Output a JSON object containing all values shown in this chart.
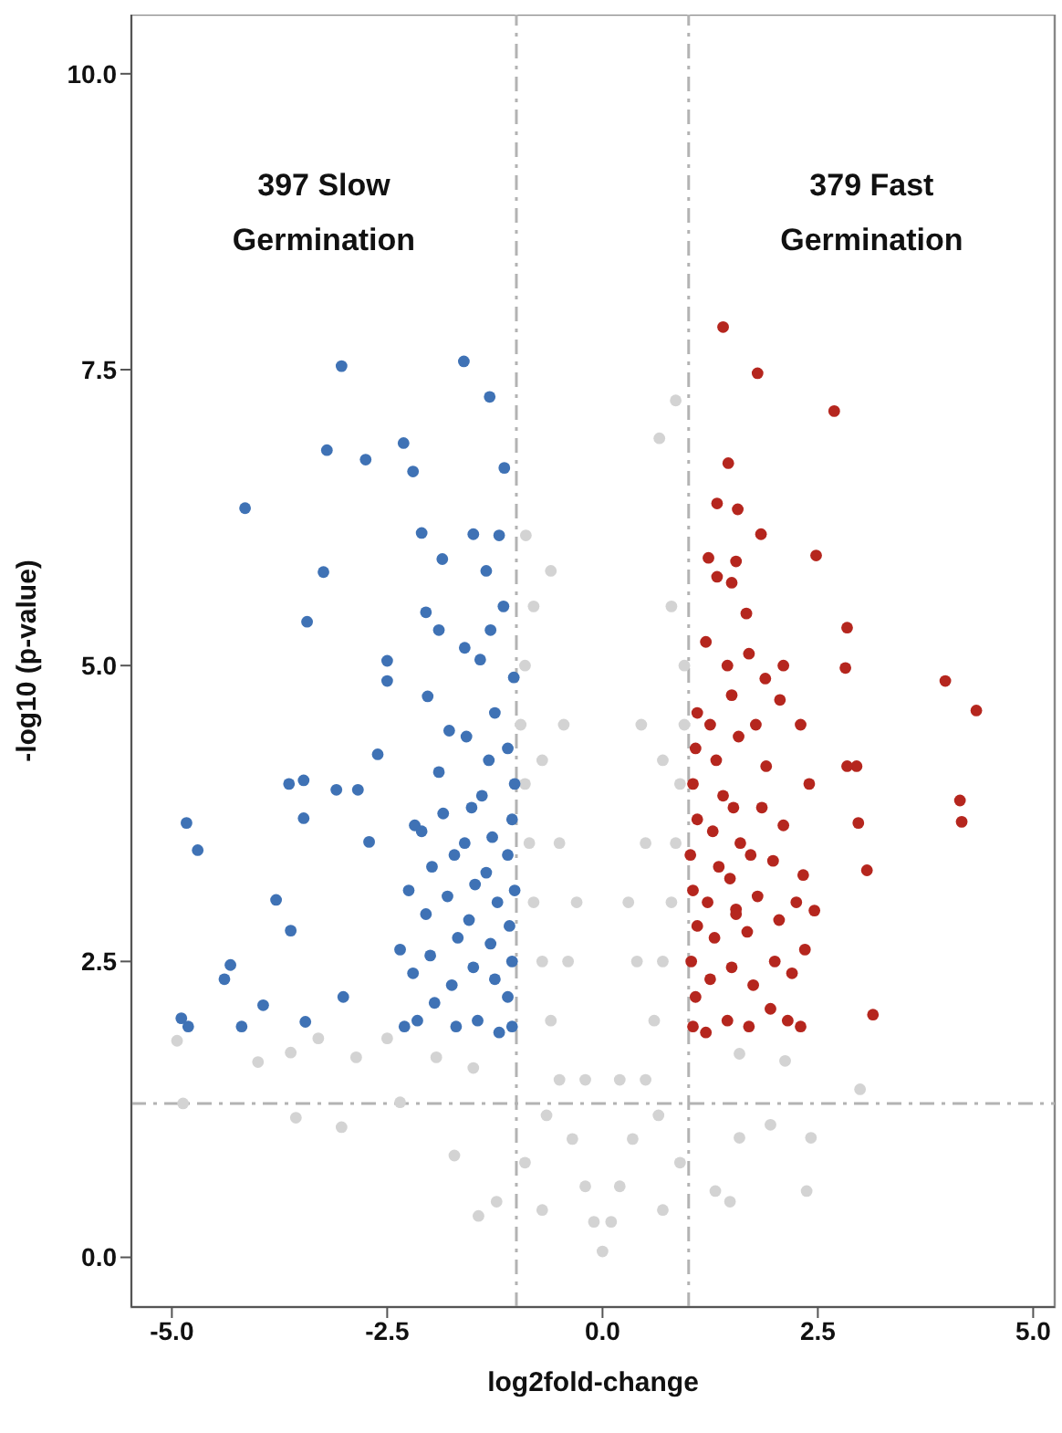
{
  "chart_data": {
    "type": "scatter",
    "xlabel": "log2fold-change",
    "ylabel": "-log10 (p-value)",
    "xlim": [
      -5.47,
      5.25
    ],
    "ylim": [
      -0.42,
      10.5
    ],
    "xticks": [
      {
        "value": -5,
        "label": "-5.0"
      },
      {
        "value": -2.5,
        "label": "-2.5"
      },
      {
        "value": 0,
        "label": "0.0"
      },
      {
        "value": 2.5,
        "label": "2.5"
      },
      {
        "value": 5,
        "label": "5.0"
      }
    ],
    "yticks": [
      {
        "value": 0,
        "label": "0.0"
      },
      {
        "value": 2.5,
        "label": "2.5"
      },
      {
        "value": 5,
        "label": "5.0"
      },
      {
        "value": 7.5,
        "label": "7.5"
      },
      {
        "value": 10,
        "label": "10.0"
      }
    ],
    "grid": false,
    "legend": false,
    "marker": "circle",
    "annotations": [
      "397 Slow\nGermination",
      "379 Fast\nGermination"
    ],
    "ref_lines": [
      {
        "axis": "x",
        "value": -1,
        "color": "#b3b3b3",
        "line_style": "dashdot"
      },
      {
        "axis": "x",
        "value": 1,
        "color": "#b3b3b3",
        "line_style": "dashdot"
      },
      {
        "axis": "y",
        "value": 1.3,
        "color": "#b3b3b3",
        "line_style": "dashdot"
      }
    ],
    "series": [
      {
        "color": "#d3d3d3",
        "x": [
          0,
          -0.1,
          0.1,
          -0.2,
          0.2,
          -0.35,
          0.35,
          -0.5,
          0.5,
          -0.6,
          0.6,
          -0.7,
          0.7,
          -0.8,
          0.8,
          -0.85,
          0.85,
          -0.9,
          0.9,
          -0.95,
          0.95,
          -0.9,
          0.95,
          -0.8,
          0.8,
          -0.89,
          0.66,
          0.85,
          -0.6,
          -0.2,
          0.2,
          -0.4,
          0.4,
          -0.5,
          0.5,
          -0.7,
          0.7,
          -0.9,
          0.9,
          -0.7,
          0.7,
          -1.44,
          1.48,
          2.37,
          2.99,
          -4.87,
          -4.94,
          -1.72,
          -3.03,
          -3.56,
          -2.35,
          2.12,
          1.95,
          2.42,
          -3.62,
          -2.86,
          -1.93,
          -1.5,
          1.59,
          1.59,
          1.31,
          -1.23,
          -2.5,
          -3.3,
          -4.0,
          -0.3,
          0.3,
          -0.45,
          0.45,
          -0.65,
          0.65
        ],
        "values": [
          0.05,
          0.3,
          0.3,
          0.6,
          0.6,
          1.0,
          1.0,
          1.5,
          1.5,
          2.0,
          2.0,
          2.5,
          2.5,
          3.0,
          3.0,
          3.5,
          3.5,
          4.0,
          4.0,
          4.5,
          4.5,
          5.0,
          5.0,
          5.5,
          5.5,
          6.1,
          6.92,
          7.24,
          5.8,
          1.5,
          1.5,
          2.5,
          2.5,
          3.5,
          3.5,
          4.2,
          4.2,
          0.8,
          0.8,
          0.4,
          0.4,
          0.35,
          0.47,
          0.56,
          1.42,
          1.3,
          1.83,
          0.86,
          1.1,
          1.18,
          1.31,
          1.66,
          1.12,
          1.01,
          1.73,
          1.69,
          1.69,
          1.6,
          1.72,
          1.01,
          0.56,
          0.47,
          1.85,
          1.85,
          1.65,
          3.0,
          3.0,
          4.5,
          4.5,
          1.2,
          1.2
        ]
      },
      {
        "color": "#3f72b5",
        "x": [
          -3.03,
          -1.61,
          -1.31,
          -3.2,
          -2.31,
          -2.75,
          -2.2,
          -1.14,
          -4.15,
          -2.1,
          -1.5,
          -3.24,
          -1.86,
          -3.43,
          -4.83,
          -4.7,
          -3.79,
          -3.62,
          -4.32,
          -4.39,
          -4.89,
          -4.81,
          -4.19,
          -3.94,
          -3.45,
          -3.01,
          -3.64,
          -3.47,
          -3.47,
          -2.71,
          -2.18,
          -2.61,
          -2.84,
          -3.09,
          -2.03,
          -2.5,
          -2.5,
          -1.05,
          -1.1,
          -1.05,
          -1.08,
          -1.02,
          -1.1,
          -1.05,
          -1.02,
          -1.1,
          -1.03,
          -1.2,
          -1.25,
          -1.3,
          -1.22,
          -1.35,
          -1.28,
          -1.4,
          -1.32,
          -1.25,
          -1.45,
          -1.5,
          -1.55,
          -1.48,
          -1.6,
          -1.52,
          -1.58,
          -1.42,
          -1.7,
          -1.75,
          -1.68,
          -1.8,
          -1.72,
          -1.85,
          -1.9,
          -1.78,
          -1.95,
          -2.0,
          -2.05,
          -1.98,
          -2.1,
          -2.15,
          -2.2,
          -2.25,
          -2.3,
          -2.35,
          -1.15,
          -1.3,
          -1.6,
          -1.9,
          -2.05,
          -1.2,
          -1.35
        ],
        "values": [
          7.53,
          7.57,
          7.27,
          6.82,
          6.88,
          6.74,
          6.64,
          6.67,
          6.33,
          6.12,
          6.11,
          5.79,
          5.9,
          5.37,
          3.67,
          3.44,
          3.02,
          2.76,
          2.47,
          2.35,
          2.02,
          1.95,
          1.95,
          2.13,
          1.99,
          2.2,
          4.0,
          4.03,
          3.71,
          3.51,
          3.65,
          4.25,
          3.95,
          3.95,
          4.74,
          5.04,
          4.87,
          1.95,
          2.2,
          2.5,
          2.8,
          3.1,
          3.4,
          3.7,
          4.0,
          4.3,
          4.9,
          1.9,
          2.35,
          2.65,
          3.0,
          3.25,
          3.55,
          3.9,
          4.2,
          4.6,
          2.0,
          2.45,
          2.85,
          3.15,
          3.5,
          3.8,
          4.4,
          5.05,
          1.95,
          2.3,
          2.7,
          3.05,
          3.4,
          3.75,
          4.1,
          4.45,
          2.15,
          2.55,
          2.9,
          3.3,
          3.6,
          2.0,
          2.4,
          3.1,
          1.95,
          2.6,
          5.5,
          5.3,
          5.15,
          5.3,
          5.45,
          6.1,
          5.8
        ]
      },
      {
        "color": "#b5261e",
        "x": [
          1.4,
          1.8,
          2.69,
          1.46,
          1.33,
          1.57,
          1.84,
          2.48,
          1.23,
          1.55,
          1.33,
          1.5,
          2.84,
          2.82,
          3.98,
          4.34,
          4.15,
          4.17,
          3.07,
          3.14,
          2.97,
          2.95,
          2.84,
          2.06,
          1.67,
          1.89,
          2.33,
          2.46,
          1.55,
          1.05,
          1.08,
          1.03,
          1.1,
          1.05,
          1.02,
          1.1,
          1.05,
          1.08,
          1.1,
          1.2,
          1.25,
          1.3,
          1.22,
          1.35,
          1.28,
          1.4,
          1.32,
          1.25,
          1.45,
          1.5,
          1.55,
          1.48,
          1.6,
          1.52,
          1.58,
          1.5,
          1.7,
          1.75,
          1.68,
          1.8,
          1.72,
          1.85,
          1.9,
          1.78,
          1.95,
          2.0,
          2.05,
          1.98,
          2.1,
          2.15,
          2.2,
          2.25,
          2.3,
          2.35,
          2.4,
          2.1,
          1.2,
          1.45,
          1.7,
          2.3
        ],
        "values": [
          7.86,
          7.47,
          7.15,
          6.71,
          6.37,
          6.32,
          6.11,
          5.93,
          5.91,
          5.88,
          5.75,
          5.7,
          5.32,
          4.98,
          4.87,
          4.62,
          3.86,
          3.68,
          3.27,
          2.05,
          3.67,
          4.15,
          4.15,
          4.71,
          5.44,
          4.89,
          3.23,
          2.93,
          2.94,
          1.95,
          2.2,
          2.5,
          2.8,
          3.1,
          3.4,
          3.7,
          4.0,
          4.3,
          4.6,
          1.9,
          2.35,
          2.7,
          3.0,
          3.3,
          3.6,
          3.9,
          4.2,
          4.5,
          2.0,
          2.45,
          2.9,
          3.2,
          3.5,
          3.8,
          4.4,
          4.75,
          1.95,
          2.3,
          2.75,
          3.05,
          3.4,
          3.8,
          4.15,
          4.5,
          2.1,
          2.5,
          2.85,
          3.35,
          3.65,
          2.0,
          2.4,
          3.0,
          1.95,
          2.6,
          4.0,
          5.0,
          5.2,
          5.0,
          5.1,
          4.5
        ]
      }
    ]
  }
}
